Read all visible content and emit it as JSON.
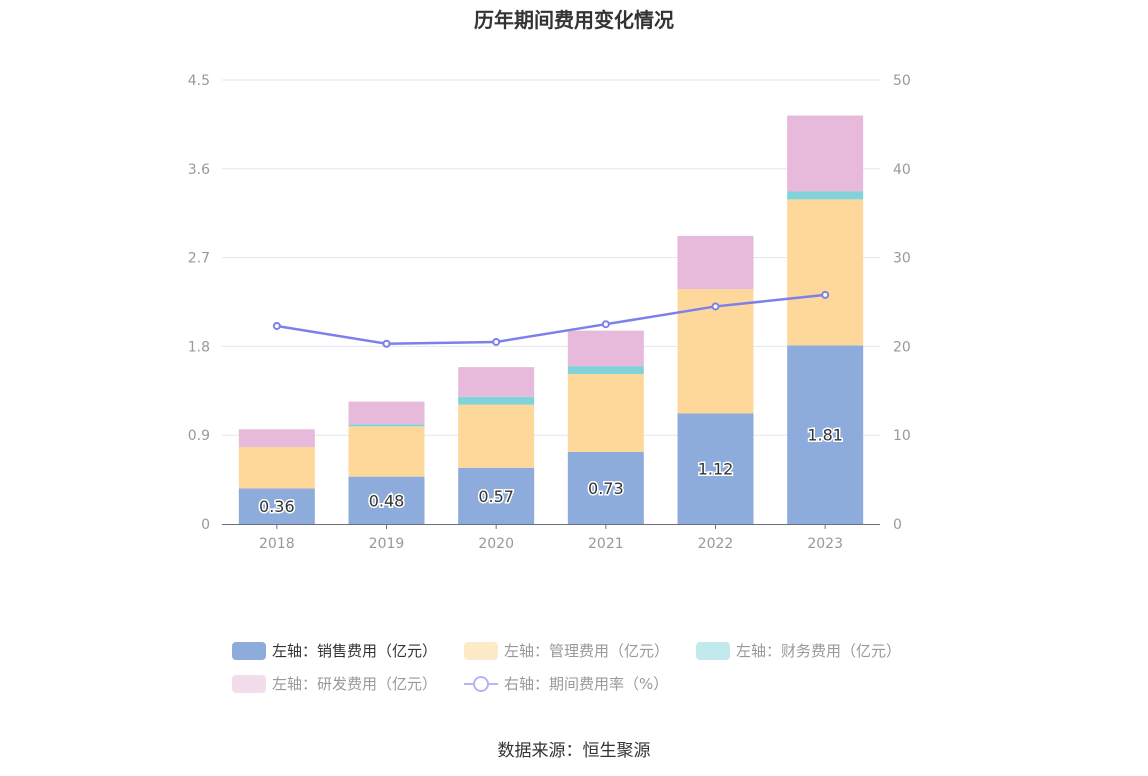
{
  "title": "历年期间费用变化情况",
  "source": "数据来源：恒生聚源",
  "colors": {
    "sales": "#8eacdb",
    "admin": "#fdd89a",
    "finance": "#7fd3d9",
    "rnd": "#e7b9da",
    "rate": "#7b80ea",
    "axis_text": "#999999",
    "grid": "#e3e6ef"
  },
  "legend": {
    "sales": "左轴：销售费用（亿元）",
    "admin": "左轴：管理费用（亿元）",
    "finance": "左轴：财务费用（亿元）",
    "rnd": "左轴：研发费用（亿元）",
    "rate": "右轴：期间费用率（%）"
  },
  "chart_data": {
    "type": "bar",
    "stacked": true,
    "categories": [
      "2018",
      "2019",
      "2020",
      "2021",
      "2022",
      "2023"
    ],
    "y_left_ticks": [
      "0",
      "0.9",
      "1.8",
      "2.7",
      "3.6",
      "4.5"
    ],
    "y_right_ticks": [
      "0",
      "10",
      "20",
      "30",
      "40",
      "50"
    ],
    "ylim_left": [
      0,
      4.5
    ],
    "ylim_right": [
      0,
      50
    ],
    "grid": true,
    "legend_position": "bottom",
    "series": [
      {
        "key": "sales",
        "name": "左轴：销售费用（亿元）",
        "axis": "left",
        "values": [
          0.36,
          0.48,
          0.57,
          0.73,
          1.12,
          1.81
        ],
        "labels": [
          "0.36",
          "0.48",
          "0.57",
          "0.73",
          "1.12",
          "1.81"
        ]
      },
      {
        "key": "admin",
        "name": "左轴：管理费用（亿元）",
        "axis": "left",
        "values": [
          0.42,
          0.51,
          0.64,
          0.79,
          1.26,
          1.48
        ]
      },
      {
        "key": "finance",
        "name": "左轴：财务费用（亿元）",
        "axis": "left",
        "values": [
          0.0,
          0.02,
          0.08,
          0.08,
          0.0,
          0.08
        ]
      },
      {
        "key": "rnd",
        "name": "左轴：研发费用（亿元）",
        "axis": "left",
        "values": [
          0.18,
          0.23,
          0.3,
          0.36,
          0.54,
          0.77
        ]
      },
      {
        "key": "rate",
        "name": "右轴：期间费用率（%）",
        "axis": "right",
        "type": "line",
        "values": [
          22.3,
          20.3,
          20.5,
          22.5,
          24.5,
          25.8
        ]
      }
    ]
  }
}
